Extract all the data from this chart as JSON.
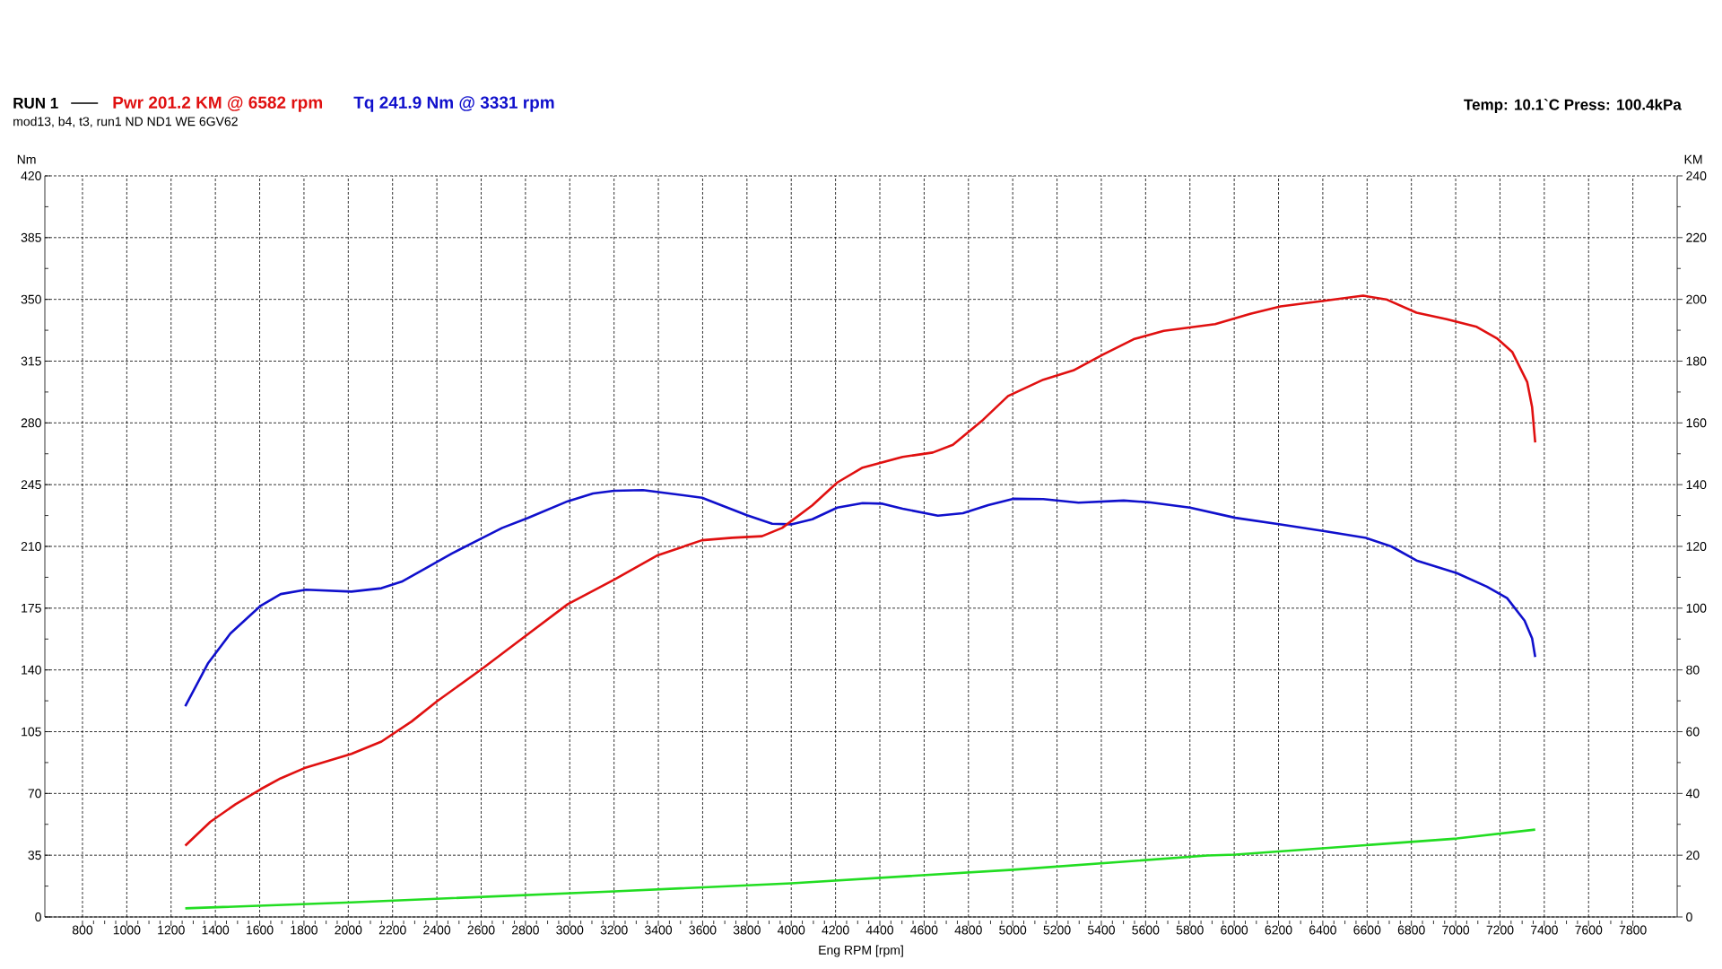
{
  "chart_data": {
    "type": "line",
    "title": "RUN 1",
    "subtitle": "mod13, b4, t3, run1 ND ND1 WE 6GV62",
    "annotations": [
      "Temp: 10.1`C   Press: 100.4kPa"
    ],
    "xlabel": "Eng RPM [rpm]",
    "ylabel": "Nm",
    "y2label": "KM",
    "xlim": [
      630,
      8000
    ],
    "xticks": [
      800,
      1000,
      1200,
      1400,
      1600,
      1800,
      2000,
      2200,
      2400,
      2600,
      2800,
      3000,
      3200,
      3400,
      3600,
      3800,
      4000,
      4200,
      4400,
      4600,
      4800,
      5000,
      5200,
      5400,
      5600,
      5800,
      6000,
      6200,
      6400,
      6600,
      6800,
      7000,
      7200,
      7400,
      7600,
      7800
    ],
    "ylim": [
      0,
      420
    ],
    "yticks": [
      0,
      35,
      70,
      105,
      140,
      175,
      210,
      245,
      280,
      315,
      350,
      385,
      420
    ],
    "y2lim": [
      0,
      240
    ],
    "y2ticks": [
      0,
      20,
      40,
      60,
      80,
      100,
      120,
      140,
      160,
      180,
      200,
      220,
      240
    ],
    "grid": true,
    "marker": "none",
    "line_style": "solid",
    "series": [
      {
        "name": "Pwr  201.2 KM @ 6582 rpm",
        "color": "#e01010",
        "axis": "y2",
        "x": [
          1264,
          1377,
          1491,
          1605,
          1695,
          1809,
          2014,
          2150,
          2286,
          2400,
          2605,
          2786,
          2991,
          3200,
          3393,
          3597,
          3733,
          3868,
          3959,
          4095,
          4208,
          4322,
          4503,
          4639,
          4730,
          4866,
          4979,
          5138,
          5274,
          5410,
          5546,
          5682,
          5914,
          6073,
          6209,
          6414,
          6582,
          6686,
          6823,
          6959,
          7095,
          7186,
          7255,
          7323,
          7345,
          7359
        ],
        "values": [
          23.1,
          30.8,
          36.5,
          41.4,
          44.9,
          48.4,
          52.8,
          56.8,
          63.3,
          69.8,
          80.4,
          90.2,
          101.3,
          109.2,
          117,
          122,
          122.8,
          123.3,
          126,
          133.3,
          140.7,
          145.5,
          149,
          150.4,
          152.9,
          161,
          168.7,
          174,
          177,
          182.2,
          187.1,
          189.8,
          192,
          195.3,
          197.7,
          199.6,
          201.2,
          200,
          195.7,
          193.6,
          191.1,
          187.4,
          183,
          173.2,
          165.1,
          153.7
        ]
      },
      {
        "name": "Tq 241.9 Nm @ 3331 rpm",
        "color": "#1010cc",
        "axis": "y",
        "x": [
          1264,
          1366,
          1468,
          1605,
          1695,
          1809,
          2014,
          2150,
          2241,
          2355,
          2468,
          2605,
          2695,
          2809,
          2991,
          3105,
          3200,
          3331,
          3597,
          3800,
          3914,
          4000,
          4095,
          4208,
          4322,
          4412,
          4503,
          4662,
          4775,
          4889,
          5002,
          5138,
          5297,
          5501,
          5614,
          5800,
          6005,
          6209,
          6414,
          6595,
          6709,
          6823,
          7005,
          7141,
          7232,
          7311,
          7345,
          7359
        ],
        "values": [
          119.4,
          143.6,
          160.7,
          176.4,
          183,
          185.5,
          184.4,
          186.3,
          190,
          198,
          206,
          214.8,
          220.5,
          226,
          235.6,
          240,
          241.5,
          241.9,
          237.6,
          227.7,
          222.8,
          222.5,
          225.4,
          232,
          234.5,
          234.2,
          231.4,
          227.4,
          228.8,
          233.4,
          237,
          236.8,
          234.8,
          236,
          235,
          232,
          226.2,
          222.5,
          218.5,
          214.8,
          210,
          202,
          194.9,
          187.2,
          180.7,
          167.9,
          157.9,
          147.3
        ]
      },
      {
        "color": "#22dd22",
        "axis": "y2",
        "x": [
          1264,
          2014,
          3200,
          4000,
          5002,
          5879,
          6005,
          7005,
          7359
        ],
        "values": [
          2.8,
          4.7,
          8.3,
          10.9,
          15.3,
          19.9,
          20.2,
          25.4,
          28.3
        ]
      }
    ]
  }
}
